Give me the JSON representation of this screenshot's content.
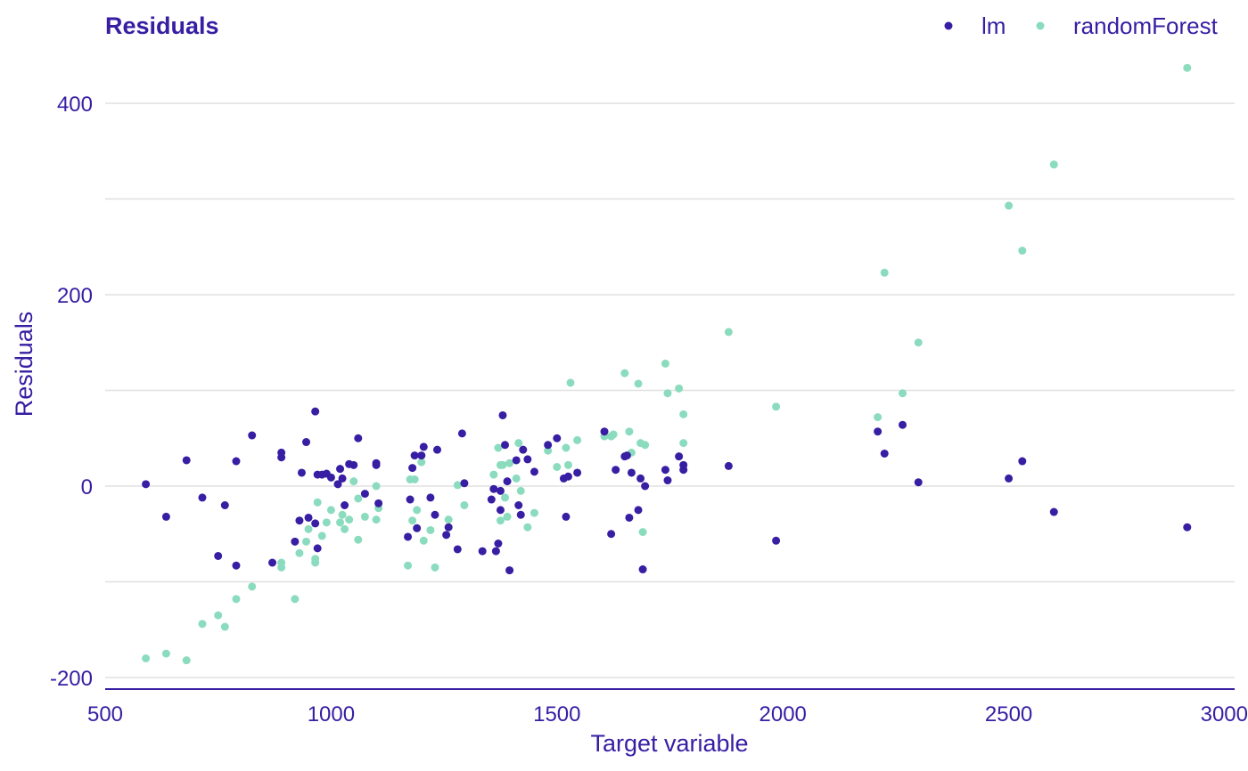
{
  "chart_data": {
    "type": "scatter",
    "title": "Residuals",
    "xlabel": "Target variable",
    "ylabel": "Residuals",
    "xlim": [
      500,
      3000
    ],
    "ylim": [
      -200,
      440
    ],
    "x_ticks": [
      500,
      1000,
      1500,
      2000,
      2500,
      3000
    ],
    "x_tick_labels": [
      "500",
      "1000",
      "1500",
      "2000",
      "2500",
      "3000"
    ],
    "y_ticks": [
      -200,
      0,
      200,
      400
    ],
    "y_tick_labels": [
      "-200",
      "0",
      "200",
      "400"
    ],
    "y_gridlines": [
      -200,
      -100,
      0,
      100,
      200,
      300,
      400
    ],
    "legend_position": "top-right",
    "colors": {
      "lm": "#371ea3",
      "randomForest": "#8bdcbe",
      "text": "#371ea3",
      "grid": "#e0e0e0",
      "axis": "#371ea3"
    },
    "series": [
      {
        "name": "lm",
        "color": "#371ea3",
        "points": [
          [
            590,
            2
          ],
          [
            635,
            -32
          ],
          [
            680,
            27
          ],
          [
            715,
            -12
          ],
          [
            750,
            -73
          ],
          [
            765,
            -20
          ],
          [
            790,
            26
          ],
          [
            790,
            -83
          ],
          [
            825,
            53
          ],
          [
            870,
            -80
          ],
          [
            890,
            35
          ],
          [
            890,
            30
          ],
          [
            920,
            -58
          ],
          [
            930,
            -36
          ],
          [
            935,
            14
          ],
          [
            945,
            46
          ],
          [
            950,
            -33
          ],
          [
            965,
            78
          ],
          [
            965,
            -39
          ],
          [
            970,
            -65
          ],
          [
            970,
            12
          ],
          [
            980,
            12
          ],
          [
            990,
            13
          ],
          [
            1000,
            9
          ],
          [
            1015,
            2
          ],
          [
            1020,
            18
          ],
          [
            1025,
            8
          ],
          [
            1030,
            -20
          ],
          [
            1040,
            23
          ],
          [
            1050,
            22
          ],
          [
            1060,
            50
          ],
          [
            1075,
            -8
          ],
          [
            1100,
            24
          ],
          [
            1100,
            22
          ],
          [
            1105,
            -18
          ],
          [
            1170,
            -53
          ],
          [
            1175,
            -14
          ],
          [
            1180,
            19
          ],
          [
            1185,
            32
          ],
          [
            1190,
            -44
          ],
          [
            1200,
            32
          ],
          [
            1205,
            41
          ],
          [
            1220,
            -12
          ],
          [
            1230,
            -30
          ],
          [
            1235,
            38
          ],
          [
            1255,
            -51
          ],
          [
            1260,
            -43
          ],
          [
            1280,
            -66
          ],
          [
            1290,
            55
          ],
          [
            1295,
            3
          ],
          [
            1335,
            -68
          ],
          [
            1355,
            -14
          ],
          [
            1360,
            -3
          ],
          [
            1365,
            -68
          ],
          [
            1370,
            -60
          ],
          [
            1375,
            -5
          ],
          [
            1375,
            -25
          ],
          [
            1380,
            74
          ],
          [
            1385,
            43
          ],
          [
            1390,
            5
          ],
          [
            1395,
            -88
          ],
          [
            1410,
            27
          ],
          [
            1415,
            -20
          ],
          [
            1420,
            -30
          ],
          [
            1425,
            38
          ],
          [
            1435,
            28
          ],
          [
            1450,
            15
          ],
          [
            1480,
            43
          ],
          [
            1500,
            50
          ],
          [
            1515,
            8
          ],
          [
            1520,
            -32
          ],
          [
            1525,
            10
          ],
          [
            1545,
            14
          ],
          [
            1605,
            57
          ],
          [
            1620,
            -50
          ],
          [
            1630,
            17
          ],
          [
            1650,
            31
          ],
          [
            1655,
            32
          ],
          [
            1660,
            -33
          ],
          [
            1665,
            14
          ],
          [
            1680,
            -25
          ],
          [
            1685,
            8
          ],
          [
            1690,
            -87
          ],
          [
            1695,
            0
          ],
          [
            1740,
            17
          ],
          [
            1745,
            6
          ],
          [
            1770,
            31
          ],
          [
            1780,
            22
          ],
          [
            1780,
            17
          ],
          [
            1880,
            21
          ],
          [
            1985,
            -57
          ],
          [
            2210,
            57
          ],
          [
            2225,
            34
          ],
          [
            2265,
            64
          ],
          [
            2300,
            4
          ],
          [
            2500,
            8
          ],
          [
            2530,
            26
          ],
          [
            2600,
            -27
          ],
          [
            2895,
            -43
          ]
        ]
      },
      {
        "name": "randomForest",
        "color": "#8bdcbe",
        "points": [
          [
            590,
            -180
          ],
          [
            635,
            -175
          ],
          [
            680,
            -182
          ],
          [
            715,
            -144
          ],
          [
            750,
            -135
          ],
          [
            765,
            -147
          ],
          [
            790,
            -118
          ],
          [
            825,
            -105
          ],
          [
            890,
            -80
          ],
          [
            890,
            -85
          ],
          [
            920,
            -118
          ],
          [
            930,
            -70
          ],
          [
            945,
            -58
          ],
          [
            950,
            -45
          ],
          [
            965,
            -80
          ],
          [
            965,
            -76
          ],
          [
            970,
            -17
          ],
          [
            980,
            -52
          ],
          [
            990,
            -38
          ],
          [
            1000,
            -25
          ],
          [
            1020,
            -38
          ],
          [
            1025,
            -30
          ],
          [
            1030,
            -45
          ],
          [
            1040,
            -35
          ],
          [
            1050,
            5
          ],
          [
            1060,
            -13
          ],
          [
            1060,
            -56
          ],
          [
            1075,
            -32
          ],
          [
            1100,
            0
          ],
          [
            1100,
            -35
          ],
          [
            1105,
            -23
          ],
          [
            1170,
            -83
          ],
          [
            1175,
            7
          ],
          [
            1180,
            -36
          ],
          [
            1185,
            7
          ],
          [
            1190,
            -25
          ],
          [
            1200,
            25
          ],
          [
            1205,
            -57
          ],
          [
            1220,
            -46
          ],
          [
            1230,
            -85
          ],
          [
            1260,
            -35
          ],
          [
            1280,
            1
          ],
          [
            1295,
            -20
          ],
          [
            1360,
            12
          ],
          [
            1370,
            40
          ],
          [
            1375,
            -36
          ],
          [
            1375,
            22
          ],
          [
            1380,
            22
          ],
          [
            1385,
            -12
          ],
          [
            1390,
            -32
          ],
          [
            1395,
            24
          ],
          [
            1410,
            8
          ],
          [
            1415,
            45
          ],
          [
            1420,
            -5
          ],
          [
            1435,
            -43
          ],
          [
            1450,
            -28
          ],
          [
            1480,
            37
          ],
          [
            1500,
            20
          ],
          [
            1520,
            40
          ],
          [
            1525,
            22
          ],
          [
            1530,
            108
          ],
          [
            1545,
            48
          ],
          [
            1605,
            52
          ],
          [
            1620,
            52
          ],
          [
            1625,
            54
          ],
          [
            1650,
            118
          ],
          [
            1660,
            57
          ],
          [
            1665,
            35
          ],
          [
            1680,
            107
          ],
          [
            1685,
            45
          ],
          [
            1690,
            -48
          ],
          [
            1695,
            43
          ],
          [
            1740,
            128
          ],
          [
            1745,
            97
          ],
          [
            1770,
            102
          ],
          [
            1780,
            45
          ],
          [
            1780,
            75
          ],
          [
            1880,
            161
          ],
          [
            1985,
            83
          ],
          [
            2210,
            72
          ],
          [
            2225,
            223
          ],
          [
            2265,
            97
          ],
          [
            2300,
            150
          ],
          [
            2500,
            293
          ],
          [
            2530,
            246
          ],
          [
            2600,
            336
          ],
          [
            2895,
            437
          ]
        ]
      }
    ]
  }
}
